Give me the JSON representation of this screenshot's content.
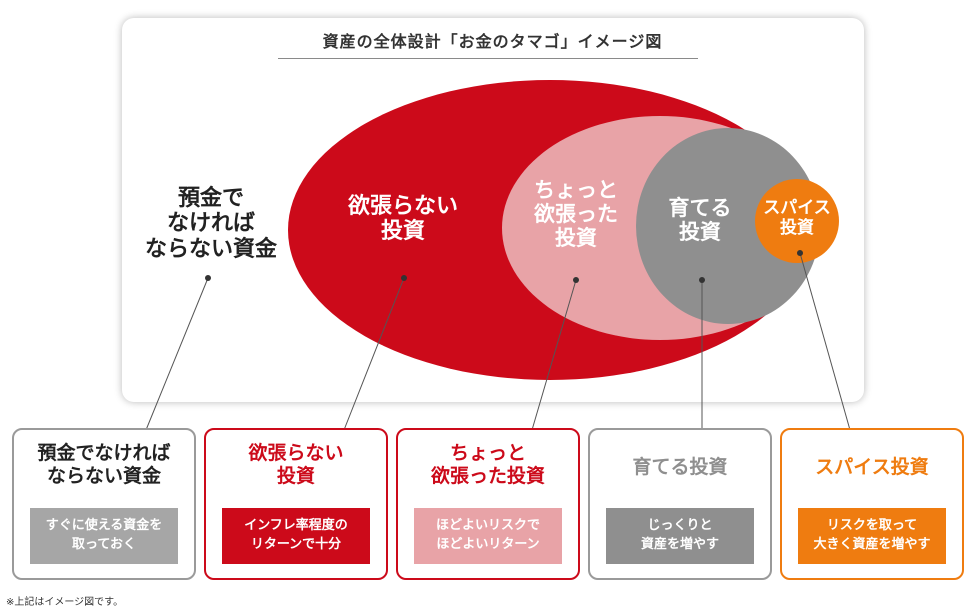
{
  "title": "資産の全体設計「お金のタマゴ」イメージ図",
  "colors": {
    "red": "#cc0a1a",
    "pink": "#e8a3a7",
    "gray": "#8f8f8f",
    "orange": "#ef7c10"
  },
  "regions": [
    {
      "label": "預金で\nなければ\nならない資金"
    },
    {
      "label": "欲張らない\n投資"
    },
    {
      "label": "ちょっと\n欲張った\n投資"
    },
    {
      "label": "育てる\n投資"
    },
    {
      "label": "スパイス\n投資"
    }
  ],
  "cards": [
    {
      "title": "預金でなければ\nならない資金",
      "desc": "すぐに使える資金を\n取っておく"
    },
    {
      "title": "欲張らない\n投資",
      "desc": "インフレ率程度の\nリターンで十分"
    },
    {
      "title": "ちょっと\n欲張った投資",
      "desc": "ほどよいリスクで\nほどよいリターン"
    },
    {
      "title": "育てる投資",
      "desc": "じっくりと\n資産を増やす"
    },
    {
      "title": "スパイス投資",
      "desc": "リスクを取って\n大きく資産を増やす"
    }
  ],
  "note": "※上記はイメージ図です。"
}
